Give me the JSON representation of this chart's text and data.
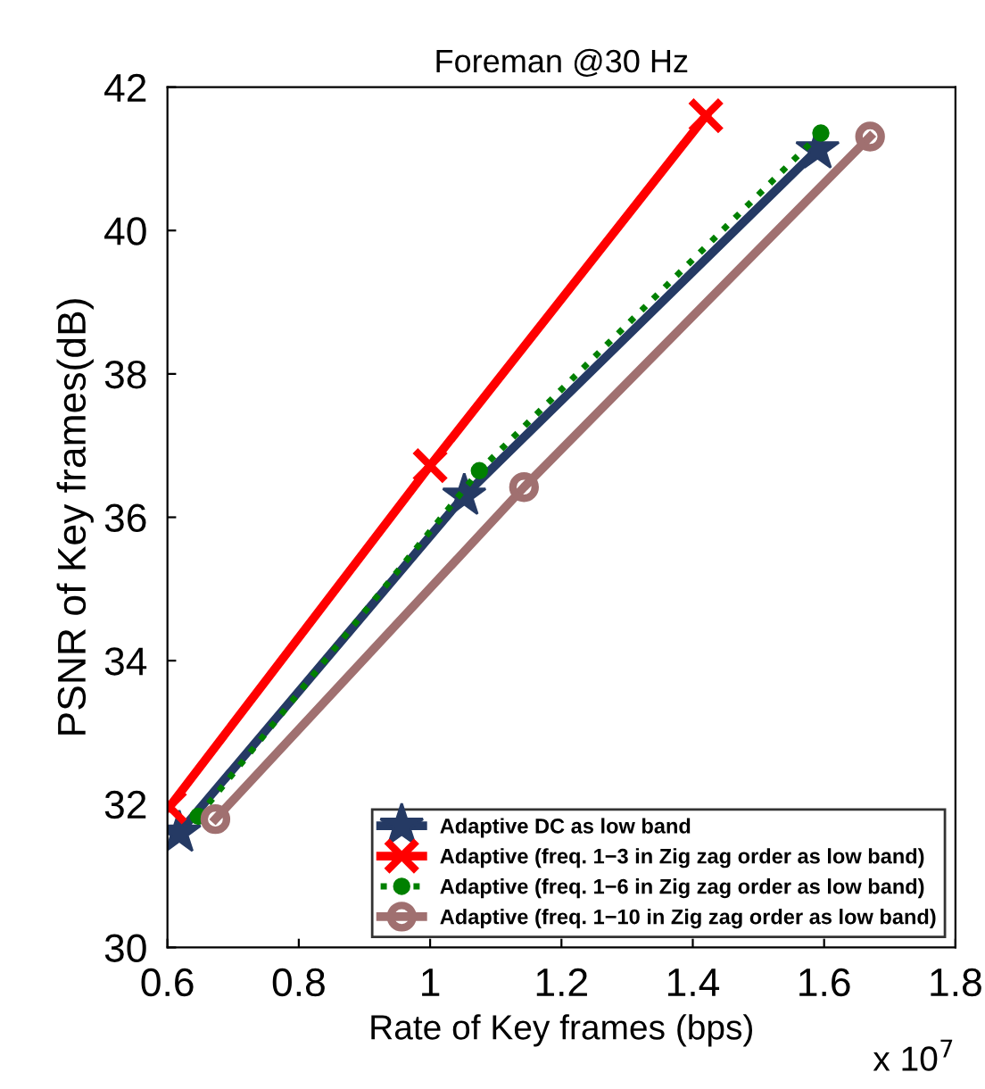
{
  "chart_data": {
    "type": "line",
    "title": "Foreman @30 Hz",
    "xlabel": "Rate of Key frames (bps)",
    "ylabel": "PSNR of Key frames(dB)",
    "annotations": [
      "x 10$^{7}$"
    ],
    "xlim": [
      0.6,
      1.8
    ],
    "xticks": [
      0.6,
      0.8,
      1,
      1.2,
      1.4,
      1.6,
      1.8
    ],
    "ylim": [
      30,
      42
    ],
    "yticks": [
      30,
      32,
      34,
      36,
      38,
      40,
      42
    ],
    "grid": false,
    "legend": "bottom right",
    "series": [
      {
        "name": "Adaptive DC as low band",
        "color": "#253a64",
        "marker": "star",
        "line_style": "solid",
        "x": [
          0.618,
          1.052,
          1.59
        ],
        "values": [
          31.6,
          36.3,
          41.13
        ]
      },
      {
        "name": "Adaptive (freq. 1−3 in Zig zag order as low band)",
        "color": "#ff0000",
        "marker": "cross",
        "line_style": "solid",
        "x": [
          0.603,
          1.0,
          1.42
        ],
        "values": [
          31.96,
          36.72,
          41.6
        ]
      },
      {
        "name": "Adaptive (freq. 1−6 in Zig zag order as low band)",
        "color": "#008000",
        "marker": "circle",
        "line_style": "dotted",
        "x": [
          0.647,
          1.075,
          1.595
        ],
        "values": [
          31.83,
          36.65,
          41.36
        ]
      },
      {
        "name": "Adaptive (freq. 1−10 in Zig zag order as low band)",
        "color": "#a07070",
        "marker": "circle",
        "line_style": "solid",
        "x": [
          0.673,
          1.143,
          1.67
        ],
        "values": [
          31.79,
          36.42,
          41.31
        ]
      }
    ]
  }
}
